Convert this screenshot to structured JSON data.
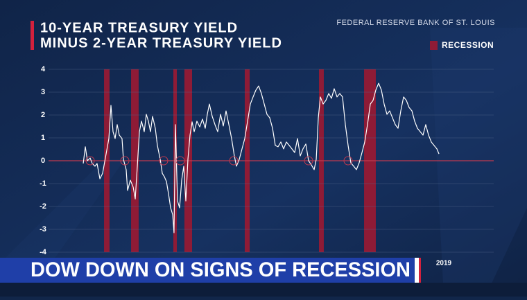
{
  "chart_data": {
    "type": "line",
    "title": "10-YEAR TREASURY YIELD",
    "subtitle": "MINUS 2-YEAR TREASURY YIELD",
    "source": "FEDERAL RESERVE BANK OF ST. LOUIS",
    "legend_label": "RECESSION",
    "recession_color": "#8e1b36",
    "zero_line_color": "#c0394f",
    "grid": true,
    "xlim": [
      1972,
      2025.5
    ],
    "ylim": [
      -4,
      4
    ],
    "yticks": [
      4,
      3,
      2,
      1,
      0,
      -1,
      -2,
      -3,
      -4
    ],
    "xticks": [
      2019
    ],
    "recessions": [
      [
        1978.67,
        1979.33
      ],
      [
        1981.92,
        1982.83
      ],
      [
        1987.0,
        1987.42
      ],
      [
        1988.33,
        1989.25
      ],
      [
        1995.58,
        1996.17
      ],
      [
        2004.5,
        2005.08
      ],
      [
        2009.92,
        2011.33
      ]
    ],
    "inversion_markers": [
      1977.0,
      1981.17,
      1985.83,
      1987.83,
      1994.25,
      2003.25,
      2008.0
    ],
    "x": [
      1976.17,
      1976.42,
      1976.67,
      1977.0,
      1977.25,
      1977.58,
      1977.83,
      1978.17,
      1978.5,
      1978.83,
      1979.25,
      1979.5,
      1979.75,
      1980.0,
      1980.25,
      1980.5,
      1980.83,
      1981.0,
      1981.33,
      1981.5,
      1981.83,
      1982.17,
      1982.42,
      1982.67,
      1982.92,
      1983.17,
      1983.5,
      1983.75,
      1984.0,
      1984.25,
      1984.5,
      1984.83,
      1985.08,
      1985.42,
      1985.67,
      1985.92,
      1986.17,
      1986.42,
      1986.67,
      1986.92,
      1987.08,
      1987.25,
      1987.5,
      1987.75,
      1988.0,
      1988.25,
      1988.5,
      1988.75,
      1989.0,
      1989.25,
      1989.5,
      1989.83,
      1990.17,
      1990.5,
      1990.83,
      1991.08,
      1991.33,
      1991.67,
      1992.0,
      1992.33,
      1992.67,
      1993.0,
      1993.33,
      1993.67,
      1994.0,
      1994.33,
      1994.58,
      1994.92,
      1995.25,
      1995.58,
      1995.92,
      1996.25,
      1996.58,
      1996.92,
      1997.25,
      1997.58,
      1997.92,
      1998.25,
      1998.58,
      1998.92,
      1999.25,
      1999.58,
      1999.92,
      2000.25,
      2000.58,
      2000.92,
      2001.25,
      2001.58,
      2001.92,
      2002.25,
      2002.58,
      2002.92,
      2003.25,
      2003.58,
      2003.92,
      2004.17,
      2004.42,
      2004.67,
      2005.0,
      2005.33,
      2005.67,
      2006.0,
      2006.33,
      2006.67,
      2007.0,
      2007.33,
      2007.67,
      2008.0,
      2008.33,
      2008.67,
      2009.0,
      2009.33,
      2009.67,
      2010.0,
      2010.33,
      2010.67,
      2011.0,
      2011.33,
      2011.67,
      2012.0,
      2012.33,
      2012.67,
      2013.0,
      2013.33,
      2013.67,
      2014.0,
      2014.33,
      2014.67,
      2015.0,
      2015.33,
      2015.67,
      2016.0,
      2016.33,
      2016.67,
      2017.0,
      2017.33,
      2017.67,
      2018.0,
      2018.33,
      2018.67,
      2018.92
    ],
    "series": [
      {
        "name": "10Y-2Y",
        "color": "#ffffff",
        "values": [
          -0.12,
          0.61,
          0,
          0.12,
          -0.12,
          -0.24,
          -0.12,
          -0.79,
          -0.55,
          0.12,
          0.97,
          2.42,
          1.27,
          0.97,
          1.58,
          1.12,
          0.97,
          0.06,
          -0.39,
          -1.3,
          -0.85,
          -1.15,
          -1.67,
          -0.24,
          1.27,
          1.73,
          1.27,
          2.03,
          1.73,
          1.27,
          1.94,
          1.42,
          0.67,
          0.06,
          -0.55,
          -0.7,
          -0.91,
          -1.45,
          -2.06,
          -2.36,
          -3.15,
          1.58,
          -1.76,
          -2.06,
          -0.85,
          -0.24,
          -1.76,
          0.06,
          1.12,
          1.7,
          1.27,
          1.73,
          1.48,
          1.82,
          1.42,
          2.03,
          2.48,
          1.94,
          1.58,
          1.27,
          2.03,
          1.52,
          2.18,
          1.58,
          0.97,
          0.21,
          -0.24,
          0.06,
          0.52,
          0.97,
          1.73,
          2.48,
          2.79,
          3.09,
          3.27,
          2.94,
          2.48,
          2.03,
          1.88,
          1.42,
          0.67,
          0.61,
          0.82,
          0.52,
          0.82,
          0.67,
          0.52,
          0.36,
          0.97,
          0.21,
          0.52,
          0.73,
          0,
          -0.18,
          -0.39,
          0.06,
          1.88,
          2.79,
          2.48,
          2.64,
          2.94,
          2.73,
          3.15,
          2.79,
          2.94,
          2.79,
          1.58,
          0.67,
          -0.09,
          -0.24,
          -0.39,
          -0.09,
          0.36,
          0.82,
          1.58,
          2.48,
          2.64,
          3.09,
          3.39,
          3.09,
          2.48,
          2.03,
          2.18,
          1.88,
          1.58,
          1.42,
          2.18,
          2.79,
          2.64,
          2.33,
          2.18,
          1.73,
          1.42,
          1.27,
          1.12,
          1.58,
          1.12,
          0.82,
          0.67,
          0.52,
          0.3
        ]
      }
    ]
  },
  "banner": {
    "headline": "DOW DOWN ON SIGNS OF RECESSION"
  }
}
